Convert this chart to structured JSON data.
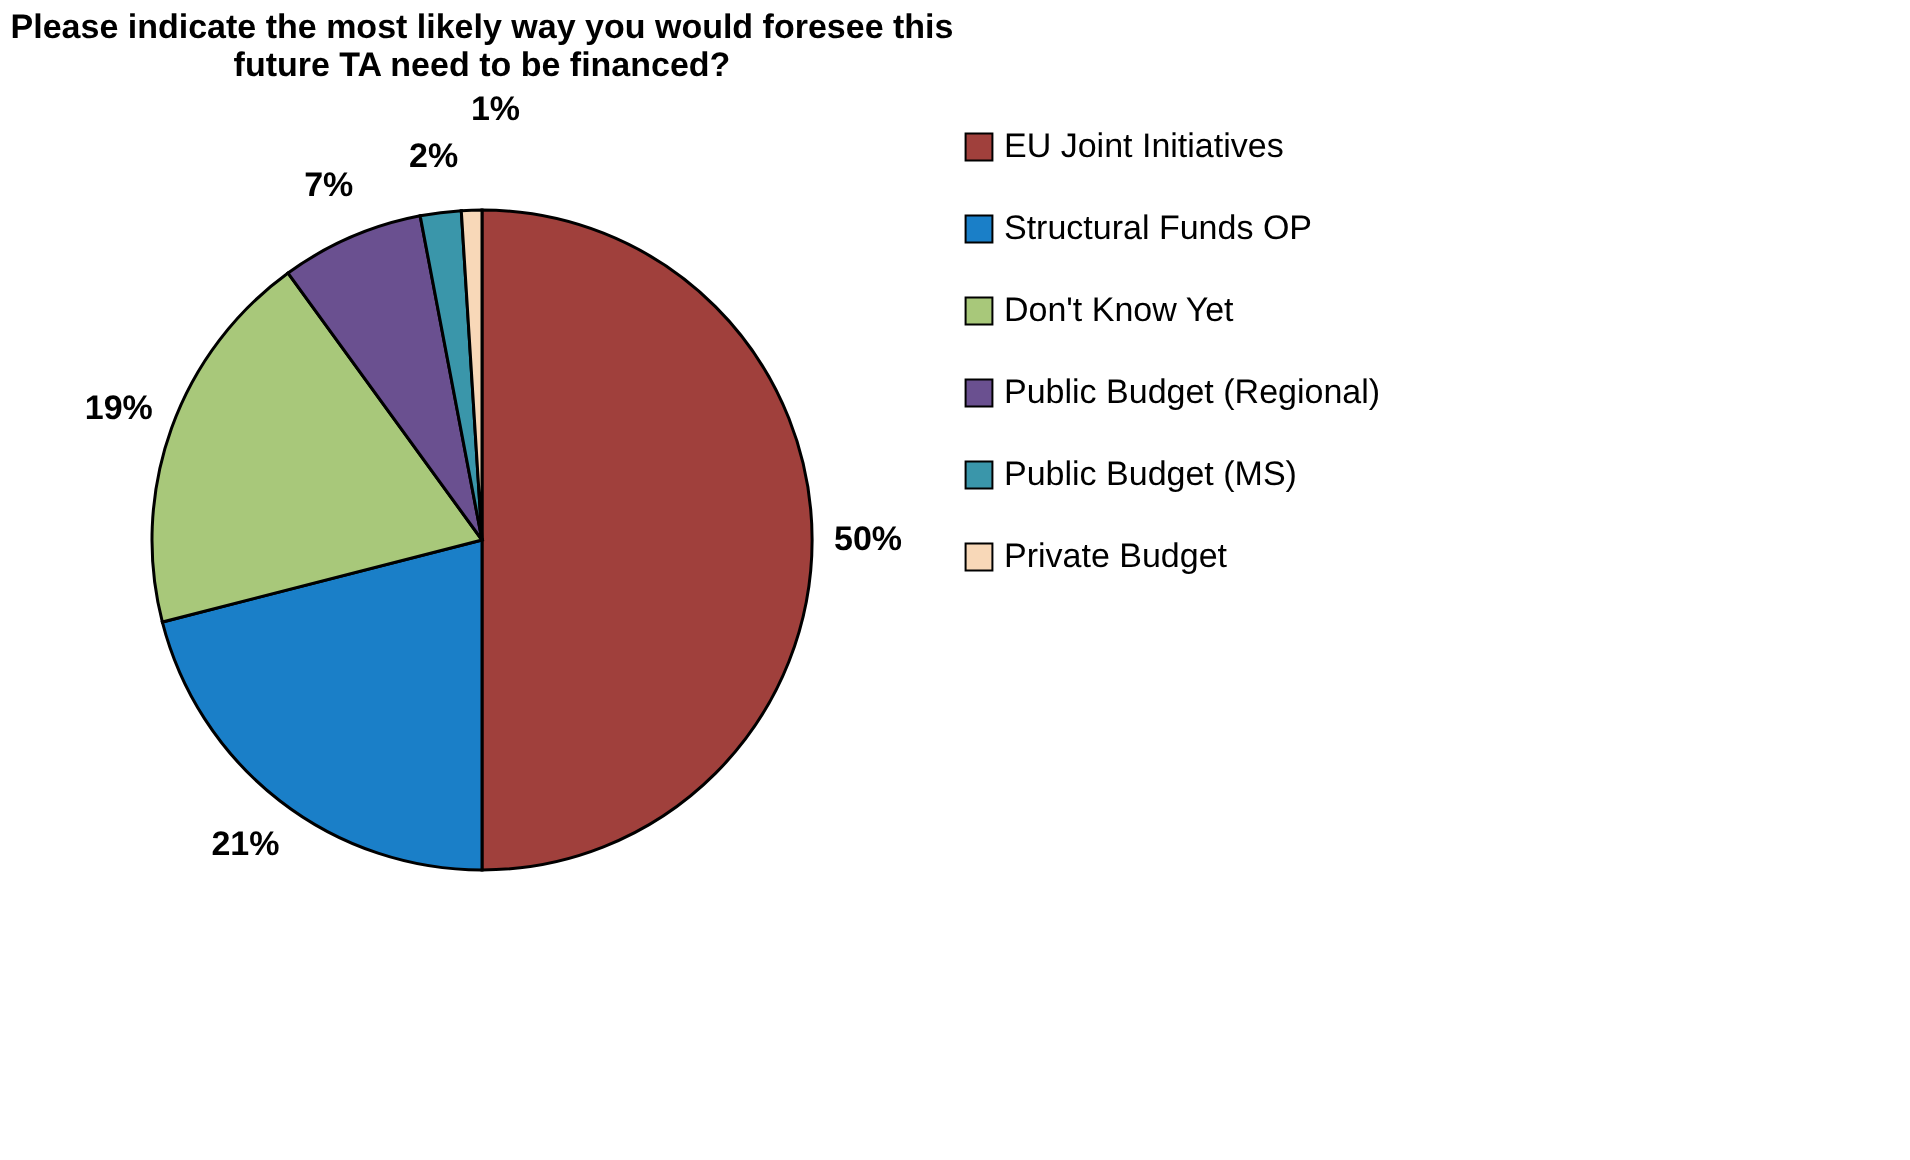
{
  "chart_data": {
    "type": "pie",
    "title": [
      "Please indicate the most likely way you would foresee this",
      "future TA need to be financed?"
    ],
    "categories": [
      "EU Joint Initiatives",
      "Structural Funds OP",
      "Don't Know Yet",
      "Public Budget (Regional)",
      "Public Budget (MS)",
      "Private Budget"
    ],
    "values": [
      50,
      21,
      19,
      7,
      2,
      1
    ],
    "colors": [
      "#a0403c",
      "#1a7fc8",
      "#a8c87a",
      "#6a5090",
      "#3a96aa",
      "#f8d8b8"
    ],
    "value_labels": [
      "50%",
      "21%",
      "19%",
      "7%",
      "2%",
      "1%"
    ],
    "legend": "right"
  }
}
